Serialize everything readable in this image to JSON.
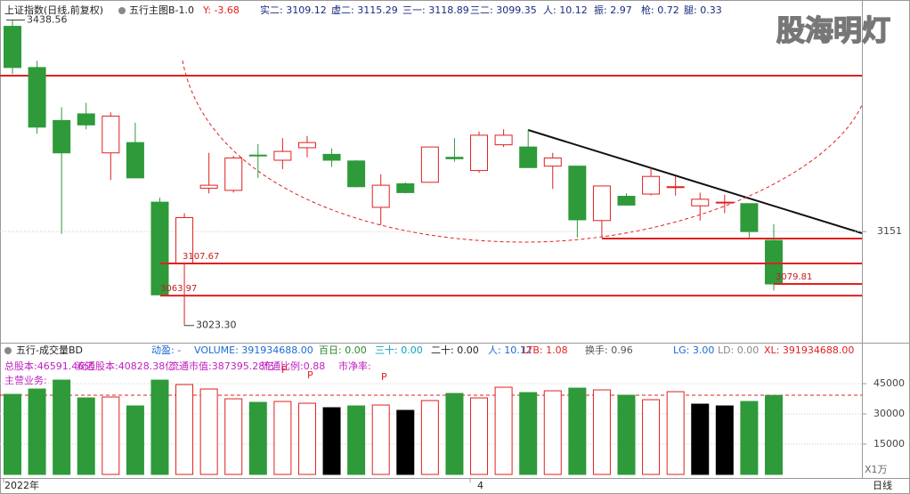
{
  "header": {
    "symbol": "上证指数(日线,前复权)",
    "indicator": "五行主图B-1.0",
    "items": [
      "Y: -3.68",
      "实二: 3109.12",
      "虚二: 3115.29",
      "三一: 3118.89",
      "三二: 3099.35",
      "人: 10.12",
      "振: 2.97",
      "枪: 0.72",
      "腿: 0.33"
    ],
    "watermark": "股海明灯"
  },
  "volume_header": {
    "indicator": "五行-成交量BD",
    "items": [
      "动盈: -",
      "VOLUME: 391934688.00",
      "百日: 0.00",
      "三十: 0.00",
      "二十: 0.00",
      "人: 10.12",
      "LTB: 1.08",
      "换手: 0.96",
      "LG: 3.00",
      "LD: 0.00",
      "XL: 391934688.00"
    ],
    "info": [
      "总股本:46591.46亿",
      "流通股本:40828.38亿",
      "流通市值:387395.28亿",
      "流通比例:0.88",
      "市净率:"
    ],
    "business": "主营业务:",
    "markers": [
      "P",
      "P",
      "P"
    ]
  },
  "footer": {
    "period": "日线",
    "unit": "X1万"
  },
  "chart_data": [
    {
      "type": "candlestick",
      "open": [
        3430,
        3374,
        3302,
        3311,
        3258,
        3272,
        3191,
        3108,
        3210,
        3207,
        3255,
        3248,
        3265,
        3256,
        3247,
        3184,
        3216,
        3218,
        3252,
        3234,
        3269,
        3266,
        3240,
        3240,
        3166,
        3199,
        3202,
        3211,
        3186,
        3190,
        3189,
        3139
      ],
      "high": [
        3438.56,
        3383,
        3320,
        3326,
        3313,
        3299,
        3197,
        3176,
        3258,
        3254,
        3270,
        3278,
        3281,
        3264,
        3248,
        3229,
        3218,
        3266,
        3278,
        3287,
        3290,
        3289,
        3258,
        3240,
        3213,
        3203,
        3238,
        3226,
        3204,
        3201,
        3189,
        3161
      ],
      "low": [
        3365,
        3284,
        3148,
        3290,
        3221,
        3224,
        3065,
        3023.3,
        3203,
        3204,
        3224,
        3236,
        3252,
        3239,
        3211,
        3160,
        3203,
        3218,
        3246,
        3231,
        3266,
        3238,
        3209,
        3143,
        3143,
        3187,
        3200,
        3200,
        3166,
        3176,
        3143,
        3071
      ],
      "close": [
        3374,
        3293,
        3258,
        3296,
        3308,
        3224,
        3065,
        3170,
        3214,
        3251,
        3254,
        3260,
        3272,
        3248,
        3212,
        3214,
        3204,
        3266,
        3250,
        3282,
        3282,
        3238,
        3251,
        3167,
        3213,
        3187,
        3226,
        3212,
        3195,
        3191,
        3151,
        3079.81
      ],
      "up_color": "#e02020",
      "down_color": "#2e9a3a",
      "ylim": [
        3000,
        3444
      ],
      "yticks": [
        3151
      ],
      "annotations": [
        {
          "value": 3438.56,
          "label": "3438.56"
        },
        {
          "value": 3023.3,
          "label": "3023.30"
        },
        {
          "value": 3107.67,
          "label": "3107.67"
        },
        {
          "value": 3063.97,
          "label": "3063.97"
        },
        {
          "value": 3079.81,
          "label": "3079.81"
        }
      ]
    },
    {
      "type": "bar",
      "categories": [
        "2022年",
        null,
        null,
        null,
        null,
        null,
        null,
        null,
        null,
        null,
        null,
        null,
        null,
        null,
        null,
        null,
        null,
        null,
        null,
        "4",
        null,
        null,
        null,
        null,
        null,
        null,
        null,
        null,
        null,
        null,
        null,
        null
      ],
      "values": [
        39706,
        42353,
        46765,
        37941,
        38382,
        33970,
        46765,
        44559,
        42353,
        37500,
        35735,
        36176,
        35294,
        33088,
        33970,
        34412,
        31765,
        36618,
        40147,
        37941,
        43235,
        40588,
        41471,
        42794,
        41912,
        39265,
        37059,
        41029,
        34853,
        33970,
        36176,
        39193
      ],
      "colors": [
        "#2e9a3a",
        "#2e9a3a",
        "#2e9a3a",
        "#2e9a3a",
        "#e02020",
        "#2e9a3a",
        "#2e9a3a",
        "#e02020",
        "#e02020",
        "#e02020",
        "#2e9a3a",
        "#e02020",
        "#e02020",
        "#000000",
        "#2e9a3a",
        "#e02020",
        "#000000",
        "#e02020",
        "#2e9a3a",
        "#e02020",
        "#e02020",
        "#2e9a3a",
        "#e02020",
        "#2e9a3a",
        "#e02020",
        "#2e9a3a",
        "#e02020",
        "#e02020",
        "#000000",
        "#000000",
        "#2e9a3a",
        "#2e9a3a"
      ],
      "ylim": [
        0,
        58700
      ],
      "yticks": [
        15000,
        30000,
        45000
      ]
    }
  ]
}
